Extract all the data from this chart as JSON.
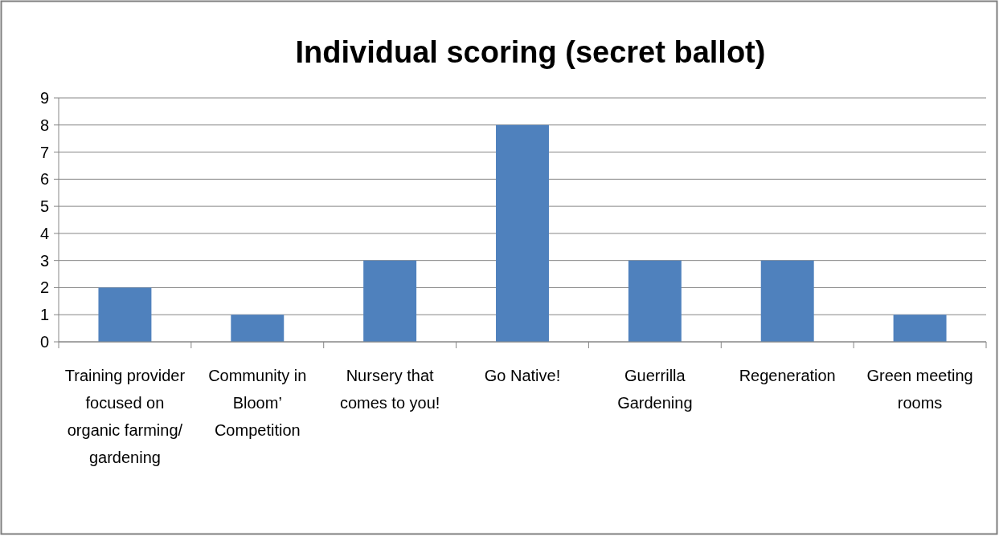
{
  "chart_data": {
    "type": "bar",
    "title": "Individual scoring (secret ballot)",
    "categories": [
      "Training provider focused on organic farming/gardening",
      "Community in Bloom’ Competition",
      "Nursery that comes to you!",
      "Go Native!",
      "Guerrilla Gardening",
      "Regeneration",
      "Green meeting rooms"
    ],
    "values": [
      2,
      1,
      3,
      8,
      3,
      3,
      1
    ],
    "color": "#4f81bd",
    "ylim": [
      0,
      9
    ],
    "yticks": [
      0,
      1,
      2,
      3,
      4,
      5,
      6,
      7,
      8,
      9
    ],
    "grid": "y"
  }
}
